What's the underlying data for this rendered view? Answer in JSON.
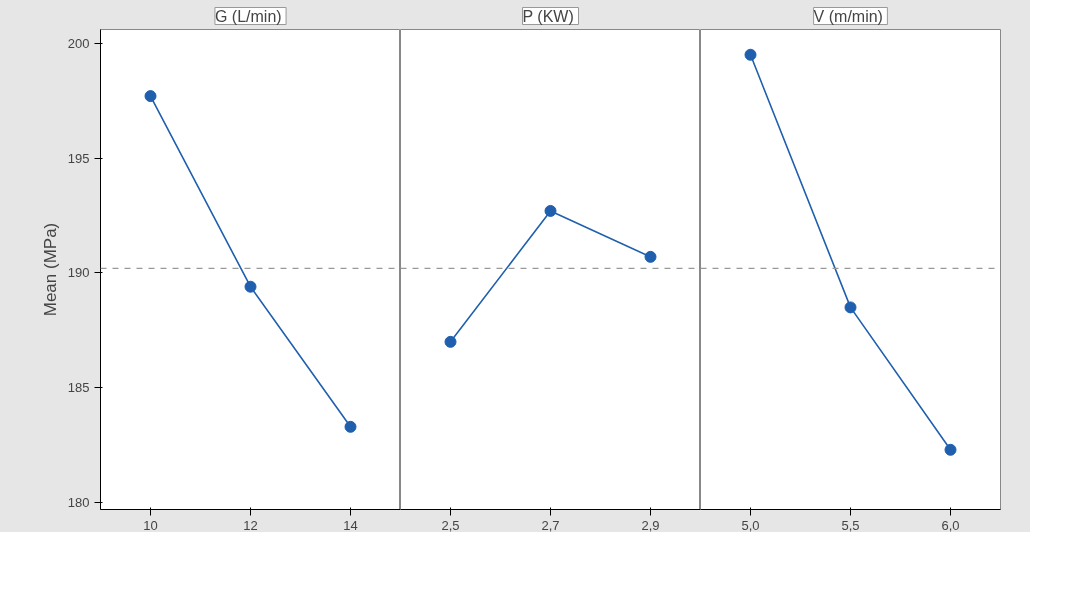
{
  "chart_data": [
    {
      "type": "line",
      "title": "G  (L/min)",
      "ylabel": "Mean (MPa)",
      "categories": [
        "10",
        "12",
        "14"
      ],
      "values": [
        197.7,
        189.4,
        183.3
      ],
      "color": "#1f5fae",
      "marker": "circle",
      "ylim": [
        179.7,
        200.6
      ],
      "yticks": [
        180,
        185,
        190,
        195,
        200
      ],
      "ref_lines": [
        {
          "axis": "y",
          "value": 190.2,
          "color": "#999999",
          "line_style": "dashed"
        }
      ]
    },
    {
      "type": "line",
      "title": "P  (KW)",
      "categories": [
        "2,5",
        "2,7",
        "2,9"
      ],
      "values": [
        187.0,
        192.7,
        190.7
      ],
      "color": "#1f5fae",
      "marker": "circle",
      "ylim": [
        179.7,
        200.6
      ],
      "yticks": [
        180,
        185,
        190,
        195,
        200
      ],
      "tick_labels": "x",
      "ref_lines": [
        {
          "axis": "y",
          "value": 190.2,
          "color": "#999999",
          "line_style": "dashed"
        }
      ]
    },
    {
      "type": "line",
      "title": "V  (m/min)",
      "categories": [
        "5,0",
        "5,5",
        "6,0"
      ],
      "values": [
        199.5,
        188.5,
        182.3
      ],
      "color": "#1f5fae",
      "marker": "circle",
      "ylim": [
        179.7,
        200.6
      ],
      "yticks": [
        180,
        185,
        190,
        195,
        200
      ],
      "tick_labels": "x",
      "ref_lines": [
        {
          "axis": "y",
          "value": 190.2,
          "color": "#999999",
          "line_style": "dashed"
        }
      ]
    }
  ]
}
